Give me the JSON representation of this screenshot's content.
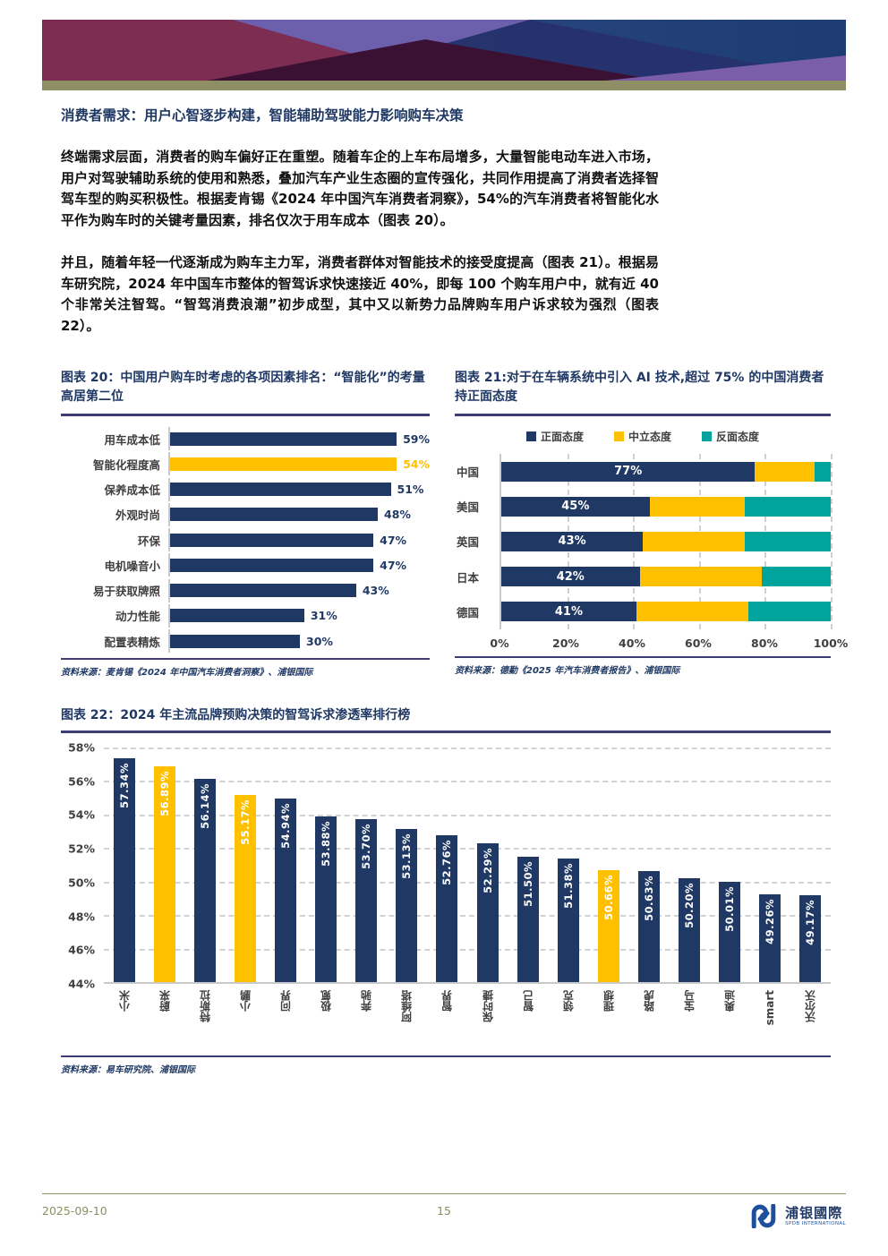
{
  "page": {
    "heading": "消费者需求：用户心智逐步构建，智能辅助驾驶能力影响购车决策",
    "para1": "终端需求层面，消费者的购车偏好正在重塑。随着车企的上车布局增多，大量智能电动车进入市场，用户对驾驶辅助系统的使用和熟悉，叠加汽车产业生态圈的宣传强化，共同作用提高了消费者选择智驾车型的购买积极性。根据麦肯锡《2024 年中国汽车消费者洞察》，54%的汽车消费者将智能化水平作为购车时的关键考量因素，排名仅次于用车成本（图表 20）。",
    "para2": "并且，随着年轻一代逐渐成为购车主力军，消费者群体对智能技术的接受度提高（图表 21）。根据易车研究院，2024 年中国车市整体的智驾诉求快速接近 40%，即每 100 个购车用户中，就有近 40 个非常关注智驾。“智驾消费浪潮”初步成型，其中又以新势力品牌购车用户诉求较为强烈（图表 22）。"
  },
  "colors": {
    "navy": "#1F3864",
    "accent_yellow": "#FFC000",
    "teal": "#00A49D",
    "rule_navy": "#3D3D73",
    "axis_gray": "#C9C9C9",
    "text_dark": "#3F3F3F",
    "olive": "#8F8F66",
    "olive_text": "#8D8D5F",
    "logo_blue": "#1D4F9C"
  },
  "chart_data": [
    {
      "id": "chart20",
      "type": "bar",
      "orientation": "horizontal",
      "title": "图表 20：中国用户购车时考虑的各项因素排名：“智能化”的考量高居第二位",
      "categories": [
        "用车成本低",
        "智能化程度高",
        "保养成本低",
        "外观时尚",
        "环保",
        "电机噪音小",
        "易于获取牌照",
        "动力性能",
        "配置表精炼"
      ],
      "values": [
        59,
        54,
        51,
        48,
        47,
        47,
        43,
        31,
        30
      ],
      "labels": [
        "59%",
        "54%",
        "51%",
        "48%",
        "47%",
        "47%",
        "43%",
        "31%",
        "30%"
      ],
      "highlight_index": 1,
      "xlim": [
        0,
        60
      ],
      "grid": false,
      "source": "资料来源：麦肯锡《2024 年中国汽车消费者洞察》、浦银国际"
    },
    {
      "id": "chart21",
      "type": "bar",
      "subtype": "stacked",
      "orientation": "horizontal",
      "title": "图表 21:对于在车辆系统中引入 AI 技术,超过 75% 的中国消费者持正面态度",
      "categories": [
        "中国",
        "美国",
        "英国",
        "日本",
        "德国"
      ],
      "series": [
        {
          "name": "正面态度",
          "color": "#1F3864",
          "values": [
            77,
            45,
            43,
            42,
            41
          ],
          "labeled": true
        },
        {
          "name": "中立态度",
          "color": "#FFC000",
          "values": [
            18,
            29,
            31,
            37,
            34
          ],
          "labeled": false
        },
        {
          "name": "反面态度",
          "color": "#00A49D",
          "values": [
            5,
            26,
            26,
            21,
            25
          ],
          "labeled": false
        }
      ],
      "xlim": [
        0,
        100
      ],
      "x_ticks": [
        "0%",
        "20%",
        "40%",
        "60%",
        "80%",
        "100%"
      ],
      "grid": true,
      "legend_position": "top",
      "source": "资料来源：德勤《2025 年汽车消费者报告》、浦银国际"
    },
    {
      "id": "chart22",
      "type": "bar",
      "orientation": "vertical",
      "title": "图表 22：2024 年主流品牌预购决策的智驾诉求渗透率排行榜",
      "categories": [
        "小米",
        "蔚来",
        "特斯拉",
        "小鹏",
        "问界",
        "极氪",
        "奔驰",
        "阿维塔",
        "智界",
        "保时捷",
        "智己",
        "领克",
        "理想",
        "路虎",
        "宝马",
        "奥迪",
        "smart",
        "沃尔沃"
      ],
      "values": [
        57.34,
        56.89,
        56.14,
        55.17,
        54.94,
        53.88,
        53.7,
        53.13,
        52.76,
        52.29,
        51.5,
        51.38,
        50.66,
        50.63,
        50.2,
        50.01,
        49.26,
        49.17
      ],
      "labels": [
        "57.34%",
        "56.89%",
        "56.14%",
        "55.17%",
        "54.94%",
        "53.88%",
        "53.70%",
        "53.13%",
        "52.76%",
        "52.29%",
        "51.50%",
        "51.38%",
        "50.66%",
        "50.63%",
        "50.20%",
        "50.01%",
        "49.26%",
        "49.17%"
      ],
      "highlight_indices": [
        1,
        3,
        12
      ],
      "ylim": [
        44,
        58
      ],
      "y_ticks": [
        "58%",
        "56%",
        "54%",
        "52%",
        "50%",
        "48%",
        "46%",
        "44%"
      ],
      "grid": true,
      "source": "资料来源：易车研究院、浦银国际"
    }
  ],
  "footer": {
    "date": "2025-09-10",
    "page_number": "15",
    "logo_cn": "浦银國際",
    "logo_en": "SPDB INTERNATIONAL"
  }
}
